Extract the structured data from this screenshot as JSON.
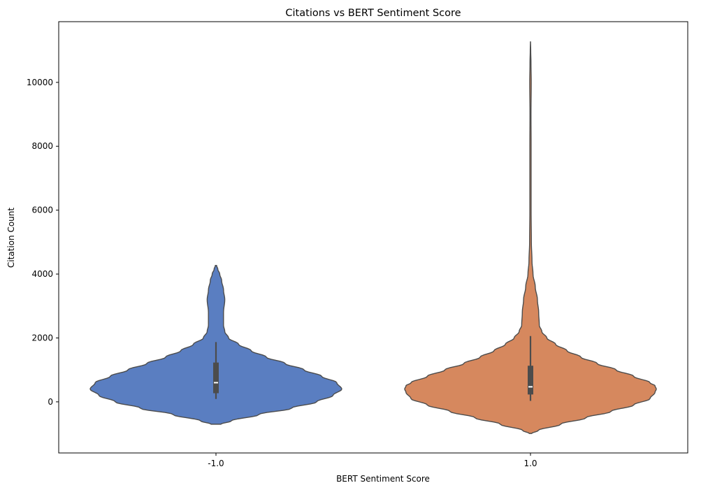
{
  "chart_data": {
    "type": "violin",
    "title": "Citations vs BERT Sentiment Score",
    "xlabel": "BERT Sentiment Score",
    "ylabel": "Citation Count",
    "categories": [
      "-1.0",
      "1.0"
    ],
    "ylim": [
      -1600,
      11900
    ],
    "yticks": [
      0,
      2000,
      4000,
      6000,
      8000,
      10000
    ],
    "grid": false,
    "legend": "none",
    "colors": [
      "#5a7ec1",
      "#d6885e"
    ],
    "edge_color": "#4c4c4c",
    "box_color": "#4c4c4c",
    "median_color": "#ffffff",
    "violins": [
      {
        "category": "-1.0",
        "min_extent": -700,
        "max_extent": 4270,
        "density": [
          [
            -700,
            0.04
          ],
          [
            -600,
            0.12
          ],
          [
            -400,
            0.34
          ],
          [
            -200,
            0.6
          ],
          [
            0,
            0.8
          ],
          [
            200,
            0.93
          ],
          [
            400,
            1.0
          ],
          [
            600,
            0.96
          ],
          [
            800,
            0.84
          ],
          [
            1000,
            0.7
          ],
          [
            1200,
            0.55
          ],
          [
            1400,
            0.4
          ],
          [
            1600,
            0.28
          ],
          [
            1800,
            0.18
          ],
          [
            2000,
            0.1
          ],
          [
            2200,
            0.07
          ],
          [
            2400,
            0.06
          ],
          [
            2800,
            0.06
          ],
          [
            3200,
            0.07
          ],
          [
            3500,
            0.06
          ],
          [
            3800,
            0.045
          ],
          [
            4000,
            0.03
          ],
          [
            4150,
            0.015
          ],
          [
            4270,
            0.005
          ]
        ],
        "q1": 270,
        "median": 600,
        "q3": 1230,
        "whisker_low": 90,
        "whisker_high": 1870
      },
      {
        "category": "1.0",
        "min_extent": -990,
        "max_extent": 11270,
        "density": [
          [
            -990,
            0.01
          ],
          [
            -900,
            0.06
          ],
          [
            -700,
            0.24
          ],
          [
            -500,
            0.44
          ],
          [
            -300,
            0.64
          ],
          [
            -100,
            0.82
          ],
          [
            100,
            0.95
          ],
          [
            300,
            0.99
          ],
          [
            400,
            1.0
          ],
          [
            500,
            0.99
          ],
          [
            600,
            0.95
          ],
          [
            800,
            0.82
          ],
          [
            1000,
            0.68
          ],
          [
            1200,
            0.53
          ],
          [
            1400,
            0.4
          ],
          [
            1600,
            0.29
          ],
          [
            1800,
            0.2
          ],
          [
            2000,
            0.13
          ],
          [
            2200,
            0.09
          ],
          [
            2400,
            0.07
          ],
          [
            2800,
            0.065
          ],
          [
            3200,
            0.055
          ],
          [
            3600,
            0.038
          ],
          [
            4000,
            0.02
          ],
          [
            4400,
            0.012
          ],
          [
            5000,
            0.007
          ],
          [
            6000,
            0.005
          ],
          [
            7000,
            0.005
          ],
          [
            8000,
            0.005
          ],
          [
            9000,
            0.004
          ],
          [
            10000,
            0.006
          ],
          [
            10600,
            0.004
          ],
          [
            11000,
            0.002
          ],
          [
            11270,
            0.0005
          ]
        ],
        "q1": 230,
        "median": 470,
        "q3": 1130,
        "whisker_low": 30,
        "whisker_high": 2060
      }
    ]
  }
}
